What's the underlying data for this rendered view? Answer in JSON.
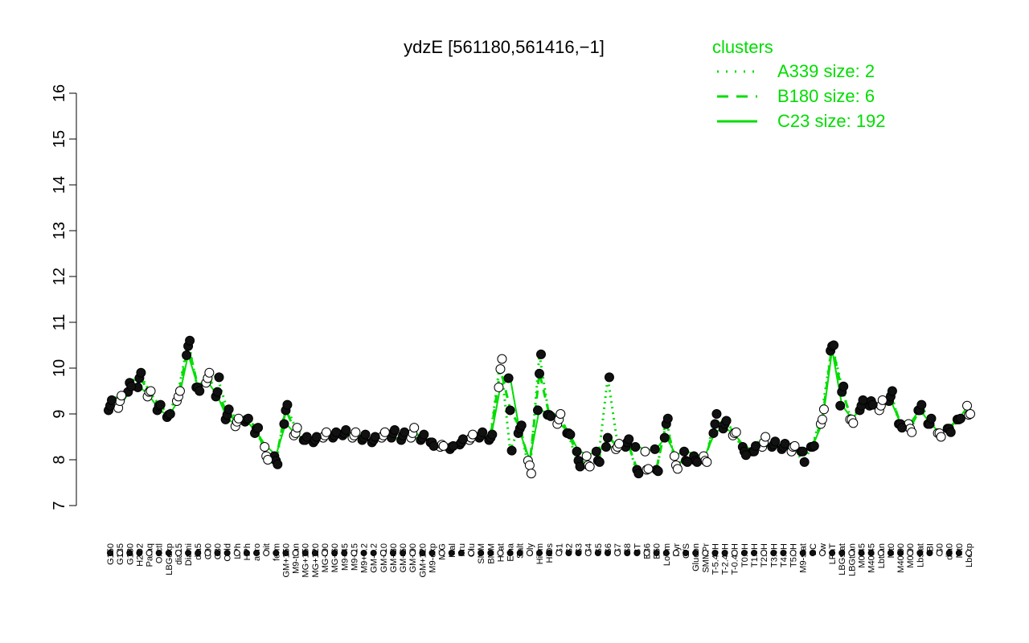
{
  "chart_data": {
    "type": "line",
    "title": "ydzE [561180,561416,−1]",
    "ylim": [
      7,
      16
    ],
    "yticks": [
      7,
      8,
      9,
      10,
      11,
      12,
      13,
      14,
      15,
      16
    ],
    "legend": {
      "title": "clusters",
      "position": "top-right",
      "entries": [
        {
          "label": "A339 size: 2",
          "style": "dotted"
        },
        {
          "label": "B180 size: 6",
          "style": "dashed"
        },
        {
          "label": "C23 size: 192",
          "style": "solid"
        }
      ]
    },
    "colors": {
      "line": "#00dd00",
      "point_dark": "#111111",
      "point_light": "#ffffff"
    },
    "tick_labels": [
      "G150",
      "G135",
      "G180",
      "H2O2",
      "Paraq",
      "Oxctl",
      "LBGexp",
      "dia15",
      "Diami",
      "dia5",
      "C90",
      "C30",
      "Cold",
      "LPh",
      "HPh",
      "aero",
      "nit",
      "ferm",
      "GM+150",
      "M9-tran",
      "MG+150",
      "MG+120",
      "MG+90",
      "MG+60",
      "M9+45",
      "M9+15",
      "M9+0.2",
      "GM-0.2",
      "GM+10",
      "GM+30",
      "GM+60",
      "GM+90",
      "GM+120",
      "M9-exp",
      "M/G",
      "Mal",
      "Fru",
      "Glu",
      "SMM",
      "BMM",
      "Heat",
      "Etha",
      "Salt",
      "Gly",
      "HiTm",
      "HiOs",
      "S1",
      "S2",
      "S3",
      "S4",
      "S5",
      "S6",
      "S7",
      "S8",
      "BT",
      "B36",
      "B60",
      "LoTm",
      "Pyr",
      "G/S",
      "Glucon",
      "SMMPr",
      "T-5.40H",
      "T-2.40H",
      "T-0.40H",
      "T0.0H",
      "T1.0H",
      "T2.0H",
      "T3.0H",
      "T4.0H",
      "T5.0H",
      "M9-stat",
      "BC",
      "Sw",
      "LPhT",
      "LBGstat",
      "LBGtran",
      "M0t45",
      "M40t45",
      "Lbtran",
      "Mt0",
      "M40t90",
      "M0t90",
      "Lbstat",
      "BI",
      "S0",
      "dia0",
      "Mt0",
      "Lbexp"
    ],
    "series": [
      {
        "style": "solid",
        "values": [
          9.1,
          9.15,
          9.5,
          9.6,
          9.4,
          9.1,
          8.95,
          9.3,
          10.3,
          9.6,
          9.7,
          9.4,
          8.9,
          8.75,
          8.85,
          8.6,
          8.3,
          8.1,
          8.8,
          8.55,
          8.45,
          8.4,
          8.5,
          8.5,
          8.55,
          8.5,
          8.45,
          8.4,
          8.5,
          8.5,
          8.45,
          8.5,
          8.45,
          8.4,
          8.3,
          8.25,
          8.35,
          8.45,
          8.5,
          8.45,
          9.6,
          9.8,
          8.6,
          8.0,
          9.1,
          9.0,
          8.8,
          8.6,
          8.2,
          8.1,
          8.2,
          8.3,
          8.25,
          8.3,
          8.3,
          8.2,
          8.25,
          8.5,
          8.1,
          8.2,
          8.1,
          8.1,
          8.6,
          8.7,
          8.55,
          8.3,
          8.2,
          8.3,
          8.3,
          8.25,
          8.2,
          8.2,
          8.3,
          8.8,
          10.4,
          9.2,
          8.9,
          9.1,
          9.2,
          9.1,
          9.3,
          8.8,
          8.8,
          9.1,
          8.8,
          8.6,
          8.7,
          8.9,
          9.2
        ]
      },
      {
        "style": "dashed",
        "values": [
          9.2,
          9.3,
          9.7,
          9.8,
          9.5,
          9.2,
          9.0,
          9.4,
          10.5,
          9.6,
          9.8,
          9.5,
          9.0,
          8.85,
          8.9,
          8.7,
          8.1,
          8.0,
          9.1,
          8.6,
          8.45,
          8.45,
          8.55,
          8.55,
          8.6,
          8.55,
          8.5,
          8.45,
          8.55,
          8.6,
          8.55,
          8.6,
          8.5,
          8.4,
          8.35,
          8.3,
          8.4,
          8.5,
          8.55,
          8.5,
          10.0,
          9.1,
          8.7,
          7.9,
          9.9,
          9.0,
          8.9,
          8.6,
          8.0,
          7.9,
          8.0,
          8.5,
          8.3,
          8.4,
          7.8,
          7.8,
          7.8,
          8.8,
          7.9,
          8.0,
          8.0,
          8.0,
          8.8,
          8.8,
          8.6,
          8.2,
          8.2,
          8.4,
          8.35,
          8.3,
          8.3,
          8.2,
          8.3,
          8.9,
          10.5,
          9.5,
          8.9,
          9.2,
          9.3,
          9.2,
          9.4,
          8.8,
          8.7,
          9.1,
          8.8,
          8.6,
          8.7,
          8.9,
          9.0
        ]
      },
      {
        "style": "dotted",
        "values": [
          9.3,
          9.4,
          9.6,
          9.9,
          9.5,
          9.2,
          9.0,
          9.5,
          10.6,
          9.5,
          9.9,
          9.8,
          9.1,
          8.9,
          8.9,
          8.7,
          8.0,
          7.9,
          9.2,
          8.7,
          8.5,
          8.5,
          8.6,
          8.6,
          8.65,
          8.6,
          8.55,
          8.5,
          8.6,
          8.65,
          8.6,
          8.7,
          8.55,
          8.3,
          8.3,
          8.3,
          8.45,
          8.55,
          8.6,
          8.55,
          10.2,
          8.2,
          8.75,
          7.7,
          10.3,
          8.95,
          9.0,
          8.55,
          7.85,
          7.85,
          7.95,
          9.8,
          8.35,
          8.45,
          7.7,
          7.8,
          7.75,
          8.9,
          7.8,
          7.95,
          7.95,
          7.95,
          9.0,
          8.85,
          8.6,
          8.1,
          8.3,
          8.5,
          8.4,
          8.35,
          8.3,
          7.95,
          8.3,
          9.1,
          10.5,
          9.6,
          8.8,
          9.3,
          9.2,
          9.3,
          9.5,
          8.7,
          8.6,
          9.2,
          8.9,
          8.5,
          8.6,
          8.9,
          9.0
        ]
      }
    ]
  }
}
